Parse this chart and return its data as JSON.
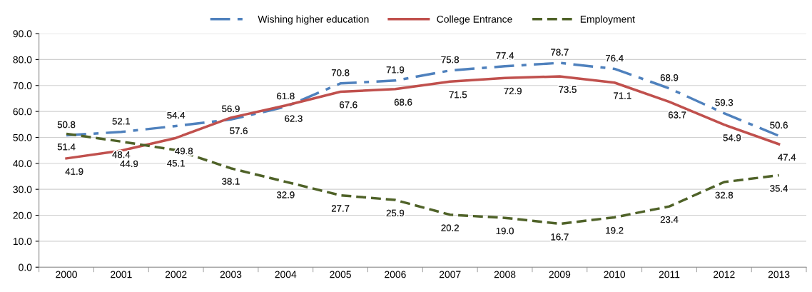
{
  "chart_data": {
    "type": "line",
    "categories": [
      "2000",
      "2001",
      "2002",
      "2003",
      "2004",
      "2005",
      "2006",
      "2007",
      "2008",
      "2009",
      "2010",
      "2011",
      "2012",
      "2013"
    ],
    "series": [
      {
        "name": "Wishing higher education",
        "color": "#4f81bd",
        "line_style": "dashdot",
        "values": [
          50.8,
          52.1,
          54.4,
          56.9,
          61.8,
          70.8,
          71.9,
          75.8,
          77.4,
          78.7,
          76.4,
          68.9,
          59.3,
          50.6
        ],
        "value_labels": [
          "50.8",
          "52.1",
          "54.4",
          "56.9",
          "61.8",
          "70.8",
          "71.9",
          "75.8",
          "77.4",
          "78.7",
          "76.4",
          "68.9",
          "59.3",
          "50.6"
        ]
      },
      {
        "name": "College Entrance",
        "color": "#c0504d",
        "line_style": "solid",
        "values": [
          41.9,
          44.9,
          49.8,
          57.6,
          62.3,
          67.6,
          68.6,
          71.5,
          72.9,
          73.5,
          71.1,
          63.7,
          54.9,
          47.4
        ],
        "value_labels": [
          "41.9",
          "44.9",
          "49.8",
          "57.6",
          "62.3",
          "67.6",
          "68.6",
          "71.5",
          "72.9",
          "73.5",
          "71.1",
          "63.7",
          "54.9",
          "47.4"
        ]
      },
      {
        "name": "Employment",
        "color": "#4f6228",
        "line_style": "dashed",
        "values": [
          51.4,
          48.4,
          45.1,
          38.1,
          32.9,
          27.7,
          25.9,
          20.2,
          19.0,
          16.7,
          19.2,
          23.4,
          32.8,
          35.4
        ],
        "value_labels": [
          "51.4",
          "48.4",
          "45.1",
          "38.1",
          "32.9",
          "27.7",
          "25.9",
          "20.2",
          "19.0",
          "16.7",
          "19.2",
          "23.4",
          "32.8",
          "35.4"
        ]
      }
    ],
    "ylim": [
      0,
      90
    ],
    "yticks": [
      {
        "value": 0,
        "label": "0.0"
      },
      {
        "value": 10,
        "label": "10.0"
      },
      {
        "value": 20,
        "label": "20.0"
      },
      {
        "value": 30,
        "label": "30.0"
      },
      {
        "value": 40,
        "label": "40.0"
      },
      {
        "value": 50,
        "label": "50.0"
      },
      {
        "value": 60,
        "label": "60.0"
      },
      {
        "value": 70,
        "label": "70.0"
      },
      {
        "value": 80,
        "label": "80.0"
      },
      {
        "value": 90,
        "label": "90.0"
      }
    ],
    "grid": "y",
    "legend": "top",
    "marker": "none"
  }
}
